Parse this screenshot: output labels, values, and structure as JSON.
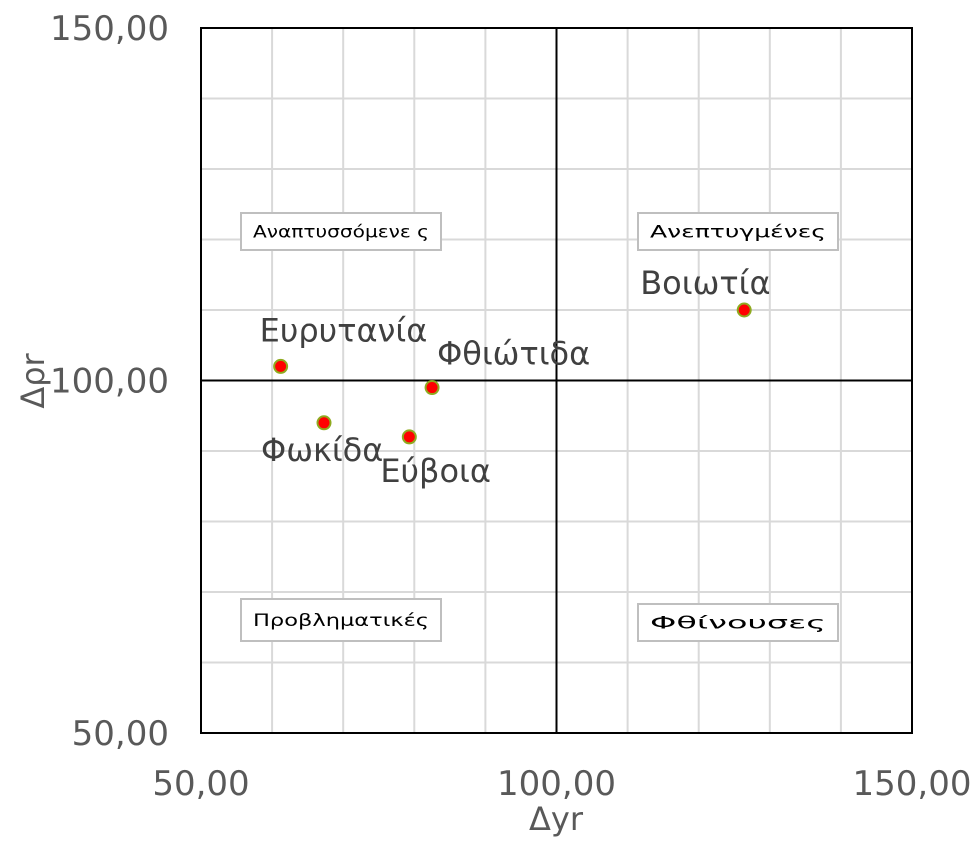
{
  "chart_data": {
    "type": "scatter",
    "xlabel": "Δyr",
    "ylabel": "Δρr",
    "xlim": [
      50,
      150
    ],
    "ylim": [
      50,
      150
    ],
    "x_ticks": [
      "50,00",
      "100,00",
      "150,00"
    ],
    "y_ticks": [
      "50,00",
      "100,00",
      "150,00"
    ],
    "grid": true,
    "reference_lines": {
      "x": 100,
      "y": 100
    },
    "marker_color": "#ff0000",
    "marker_edge_color": "#8faa1f",
    "points": [
      {
        "label": "Ευρυτανία",
        "x": 61.2,
        "y": 102.0
      },
      {
        "label": "Φθιώτιδα",
        "x": 82.5,
        "y": 99.0
      },
      {
        "label": "Φωκίδα",
        "x": 67.3,
        "y": 94.0
      },
      {
        "label": "Εύβοια",
        "x": 79.3,
        "y": 92.0
      },
      {
        "label": "Βοιωτία",
        "x": 126.4,
        "y": 110.0
      }
    ],
    "quadrant_labels": [
      {
        "text": "Αναπτυσσόμενε ς",
        "position": "top-left"
      },
      {
        "text": "Ανεπτυγμένες",
        "position": "top-right"
      },
      {
        "text": "Προβληματικές",
        "position": "bottom-left"
      },
      {
        "text": "Φθίνουσες",
        "position": "bottom-right"
      }
    ]
  }
}
